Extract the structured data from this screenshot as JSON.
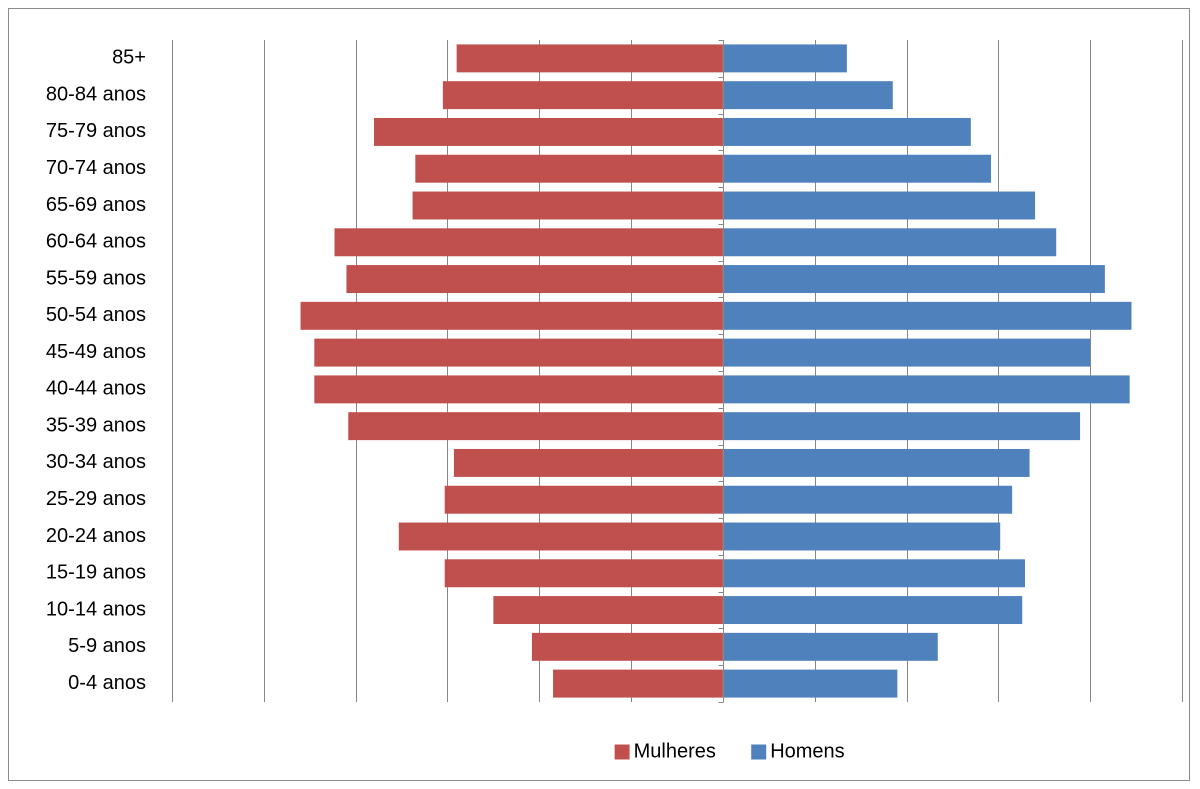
{
  "chart_data": {
    "type": "bar",
    "orientation": "horizontal",
    "layout": "population-pyramid",
    "categories": [
      "85+",
      "80-84 anos",
      "75-79 anos",
      "70-74 anos",
      "65-69 anos",
      "60-64 anos",
      "55-59 anos",
      "50-54 anos",
      "45-49 anos",
      "40-44 anos",
      "35-39 anos",
      "30-34 anos",
      "25-29 anos",
      "20-24 anos",
      "15-19 anos",
      "10-14 anos",
      "5-9 anos",
      "0-4 anos"
    ],
    "series": [
      {
        "name": "Mulheres",
        "side": "left",
        "color": "#c0504d",
        "values": [
          2.9,
          3.05,
          3.8,
          3.35,
          3.38,
          4.23,
          4.1,
          4.6,
          4.45,
          4.45,
          4.08,
          2.93,
          3.03,
          3.53,
          3.03,
          2.5,
          2.08,
          1.85
        ]
      },
      {
        "name": "Homens",
        "side": "right",
        "color": "#4f81bd",
        "values": [
          1.35,
          1.85,
          2.7,
          2.92,
          3.4,
          3.63,
          4.16,
          4.45,
          4.0,
          4.43,
          3.89,
          3.34,
          3.15,
          3.02,
          3.29,
          3.26,
          2.34,
          1.9
        ]
      }
    ],
    "xlim": [
      -6,
      5
    ],
    "grid_step": 1,
    "grid": true,
    "tick_labels_shown": false,
    "legend_position": "bottom-center"
  }
}
